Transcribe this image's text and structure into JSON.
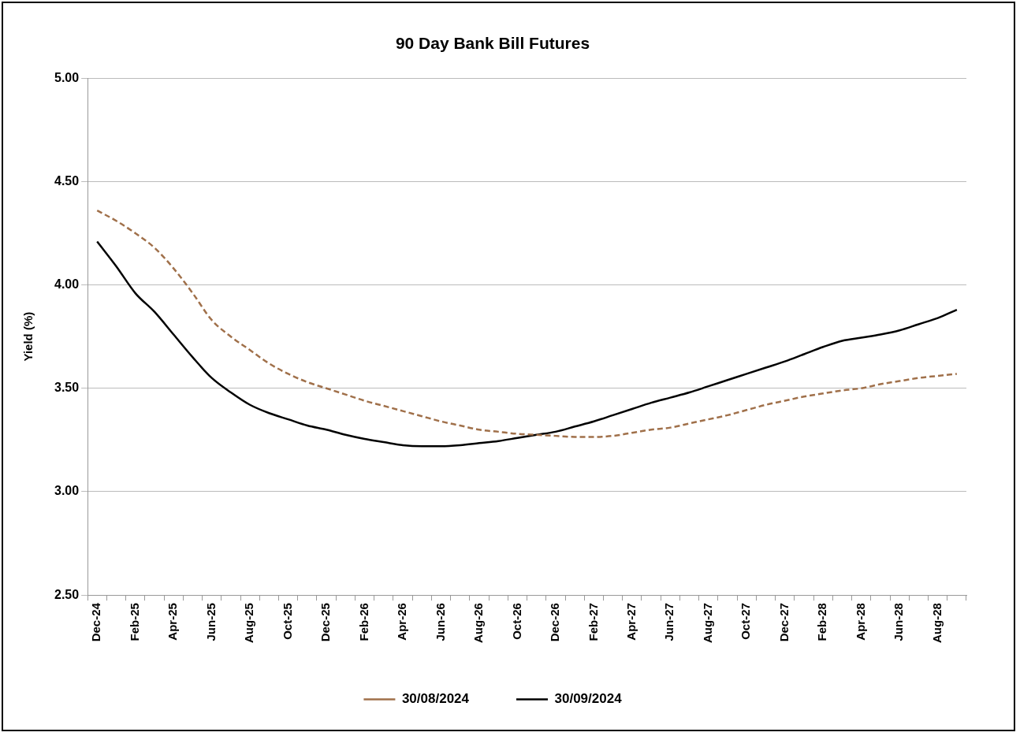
{
  "chart_data": {
    "type": "line",
    "title": "90 Day Bank Bill Futures",
    "ylabel": "Yield (%)",
    "categories": [
      "Dec-24",
      null,
      "Feb-25",
      null,
      "Apr-25",
      null,
      "Jun-25",
      null,
      "Aug-25",
      null,
      "Oct-25",
      null,
      "Dec-25",
      null,
      "Feb-26",
      null,
      "Apr-26",
      null,
      "Jun-26",
      null,
      "Aug-26",
      null,
      "Oct-26",
      null,
      "Dec-26",
      null,
      "Feb-27",
      null,
      "Apr-27",
      null,
      "Jun-27",
      null,
      "Aug-27",
      null,
      "Oct-27",
      null,
      "Dec-27",
      null,
      "Feb-28",
      null,
      "Apr-28",
      null,
      "Jun-28",
      null,
      "Aug-28",
      null
    ],
    "series": [
      {
        "name": "30/08/2024",
        "color": "#a0704a",
        "line_style": "dashed",
        "values": [
          4.36,
          4.31,
          4.25,
          4.18,
          4.08,
          3.96,
          3.83,
          3.75,
          3.685,
          3.62,
          3.57,
          3.53,
          3.5,
          3.47,
          3.44,
          3.415,
          3.39,
          3.365,
          3.34,
          3.32,
          3.3,
          3.29,
          3.28,
          3.275,
          3.27,
          3.265,
          3.265,
          3.27,
          3.285,
          3.3,
          3.31,
          3.33,
          3.35,
          3.37,
          3.395,
          3.42,
          3.44,
          3.46,
          3.475,
          3.49,
          3.5,
          3.52,
          3.535,
          3.55,
          3.56,
          3.57
        ]
      },
      {
        "name": "30/09/2024",
        "color": "#000000",
        "line_style": "solid",
        "values": [
          4.21,
          4.09,
          3.96,
          3.87,
          3.76,
          3.65,
          3.55,
          3.48,
          3.42,
          3.38,
          3.35,
          3.32,
          3.3,
          3.275,
          3.255,
          3.24,
          3.225,
          3.22,
          3.22,
          3.225,
          3.235,
          3.245,
          3.26,
          3.275,
          3.29,
          3.315,
          3.34,
          3.37,
          3.4,
          3.43,
          3.455,
          3.48,
          3.51,
          3.54,
          3.57,
          3.6,
          3.63,
          3.665,
          3.7,
          3.73,
          3.745,
          3.76,
          3.78,
          3.81,
          3.84,
          3.88
        ]
      }
    ],
    "ylim": [
      2.5,
      5
    ],
    "yticks": [
      {
        "value": 2.5,
        "label": "2.50"
      },
      {
        "value": 3,
        "label": "3.00"
      },
      {
        "value": 3.5,
        "label": "3.50"
      },
      {
        "value": 4,
        "label": "4.00"
      },
      {
        "value": 4.5,
        "label": "4.50"
      },
      {
        "value": 5,
        "label": "5.00"
      }
    ],
    "grid": "y",
    "legend": "bottom",
    "marker": "none"
  }
}
